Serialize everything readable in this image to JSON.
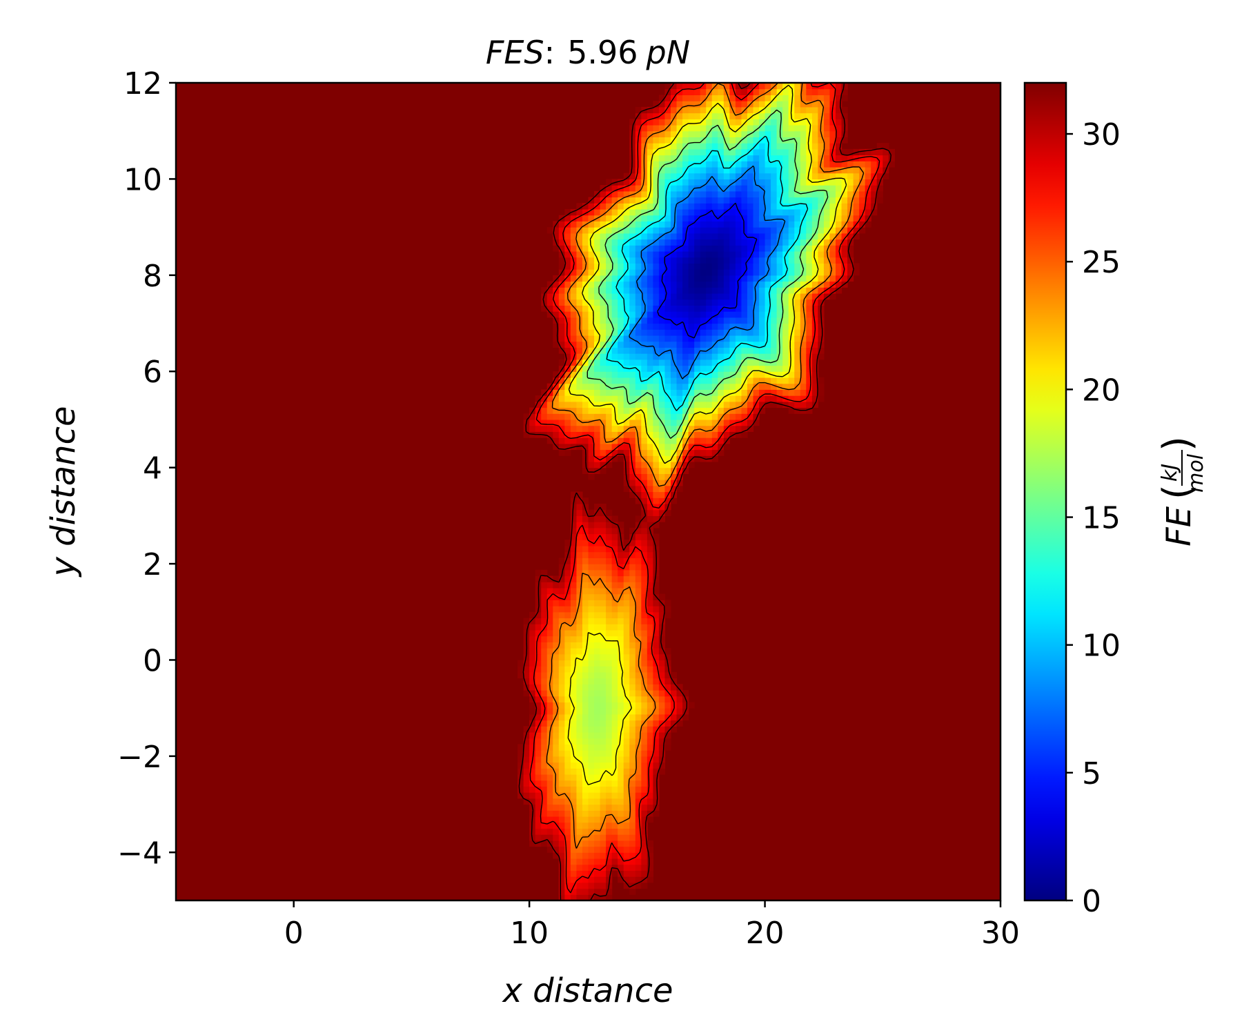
{
  "chart_data": {
    "type": "heatmap",
    "title_italic": "FES",
    "title_sep": ":",
    "title_value": "5.96",
    "title_unit": "pN",
    "xlabel": "x distance",
    "ylabel": "y distance",
    "xlim": [
      -5,
      30
    ],
    "ylim": [
      -5,
      12
    ],
    "xticks": [
      0,
      10,
      20,
      30
    ],
    "yticks": [
      -4,
      -2,
      0,
      2,
      4,
      6,
      8,
      10,
      12
    ],
    "colormap": "jet",
    "colorbar": {
      "label_prefix": "FE",
      "label_numerator": "kJ",
      "label_denominator": "mol",
      "range": [
        0,
        32
      ],
      "ticks": [
        0,
        5,
        10,
        15,
        20,
        25,
        30
      ]
    },
    "contour_levels": [
      4,
      8,
      12,
      16,
      20,
      24,
      28,
      31
    ],
    "basins": [
      {
        "center_x": 17.5,
        "center_y": 8.1,
        "min_fe": 0,
        "spread_x": 5.0,
        "spread_y": 2.7,
        "tilt_deg": 22
      },
      {
        "center_x": 12.9,
        "center_y": -1.0,
        "min_fe": 17,
        "spread_x": 2.9,
        "spread_y": 2.2,
        "tilt_deg": 80
      }
    ],
    "background_fe": 32,
    "colors": {
      "background": "#7f0000",
      "contour": "#000000"
    }
  }
}
